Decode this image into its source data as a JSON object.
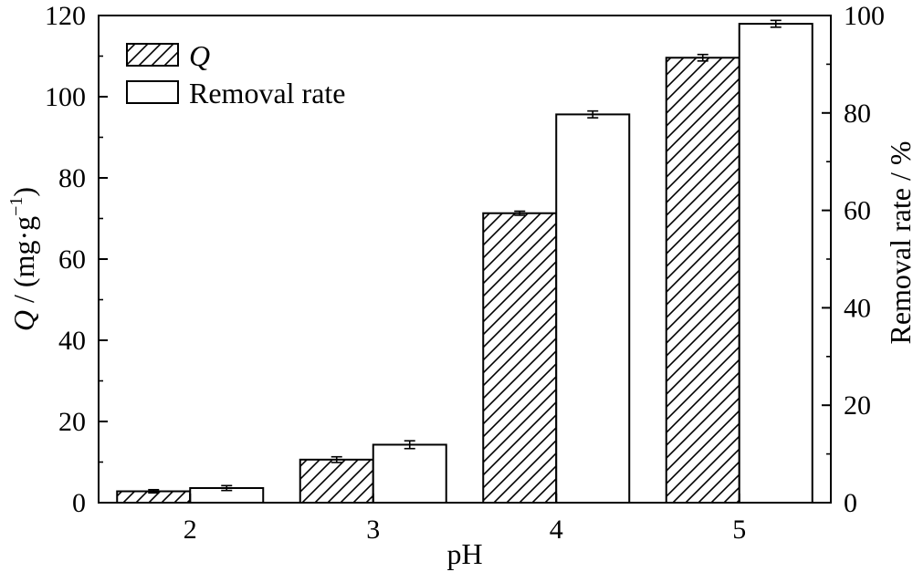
{
  "chart_data": {
    "type": "bar",
    "categories": [
      "2",
      "3",
      "4",
      "5"
    ],
    "xlabel": "pH",
    "ylabel": {
      "symbol": "Q",
      "rest": " / (mg·g",
      "superscript": "−1",
      "close": ")"
    },
    "y2label": "Removal rate / %",
    "ylim": [
      0,
      120
    ],
    "y2lim": [
      0,
      100
    ],
    "yticks": [
      "0",
      "20",
      "40",
      "60",
      "80",
      "100",
      "120"
    ],
    "y2ticks": [
      "0",
      "20",
      "40",
      "60",
      "80",
      "100"
    ],
    "grid": false,
    "legend_position": "top-left",
    "series": [
      {
        "name": "Q",
        "axis": "left",
        "pattern": "diagonal-hatch",
        "values": [
          2.8,
          10.6,
          71.3,
          109.6
        ],
        "errors": [
          0.4,
          0.7,
          0.5,
          0.8
        ]
      },
      {
        "name": "Removal rate",
        "axis": "right",
        "pattern": "none",
        "values": [
          3.0,
          11.9,
          79.7,
          98.3
        ],
        "errors": [
          0.5,
          0.8,
          0.7,
          0.7
        ]
      }
    ],
    "colors": {
      "bar_fill": "#ffffff",
      "stroke": "#000000"
    }
  }
}
